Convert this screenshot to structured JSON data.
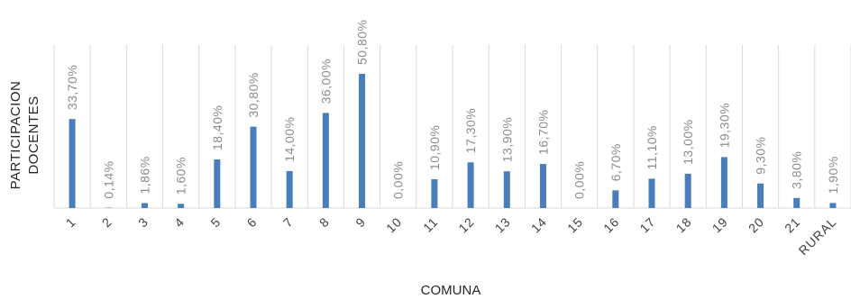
{
  "chart_data": {
    "type": "bar",
    "title": "",
    "xlabel": "COMUNA",
    "ylabel_lines": [
      "PARTICIPACION",
      "DOCENTES"
    ],
    "ylim": [
      0,
      50.8
    ],
    "grid": "vertical",
    "legend": "none",
    "bar_color": "#4a7ebb",
    "grid_color": "#d9d9d9",
    "categories": [
      "1",
      "2",
      "3",
      "4",
      "5",
      "6",
      "7",
      "8",
      "9",
      "10",
      "11",
      "12",
      "13",
      "14",
      "15",
      "16",
      "17",
      "18",
      "19",
      "20",
      "21",
      "RURAL"
    ],
    "values": [
      33.7,
      0.14,
      1.86,
      1.6,
      18.4,
      30.8,
      14.0,
      36.0,
      50.8,
      0.0,
      10.9,
      17.3,
      13.9,
      16.7,
      0.0,
      6.7,
      11.1,
      13.0,
      19.3,
      9.3,
      3.8,
      1.9
    ],
    "data_labels": [
      "33,70%",
      "0,14%",
      "1,86%",
      "1,60%",
      "18,40%",
      "30,80%",
      "14,00%",
      "36,00%",
      "50,80%",
      "0,00%",
      "10,90%",
      "17,30%",
      "13,90%",
      "16,70%",
      "0,00%",
      "6,70%",
      "11,10%",
      "13,00%",
      "19,30%",
      "9,30%",
      "3,80%",
      "1,90%"
    ]
  }
}
